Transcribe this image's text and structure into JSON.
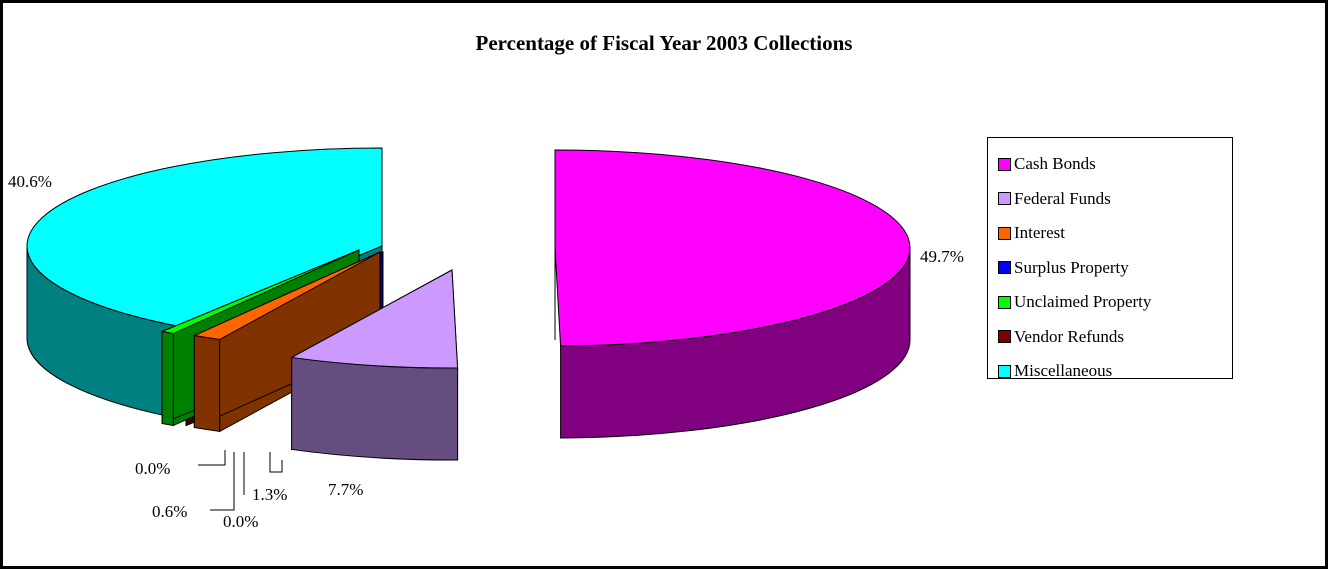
{
  "chart_data": {
    "type": "pie",
    "title": "Percentage of Fiscal Year 2003 Collections",
    "legend_position": "right",
    "slices": [
      {
        "name": "Cash Bonds",
        "value": 49.7,
        "label": "49.7%",
        "color": "#FF00FF",
        "side": "#800080"
      },
      {
        "name": "Federal Funds",
        "value": 7.7,
        "label": "7.7%",
        "color": "#CC99FF",
        "side": "#664D80"
      },
      {
        "name": "Interest",
        "value": 1.3,
        "label": "1.3%",
        "color": "#FF6600",
        "side": "#803300"
      },
      {
        "name": "Surplus Property",
        "value": 0.0,
        "label": "0.0%",
        "color": "#0000FF",
        "side": "#000080"
      },
      {
        "name": "Unclaimed Property",
        "value": 0.6,
        "label": "0.6%",
        "color": "#00FF00",
        "side": "#008000"
      },
      {
        "name": "Vendor Refunds",
        "value": 0.0,
        "label": "0.0%",
        "color": "#800000",
        "side": "#400000"
      },
      {
        "name": "Miscellaneous",
        "value": 40.6,
        "label": "40.6%",
        "color": "#00FFFF",
        "side": "#008080"
      }
    ]
  }
}
